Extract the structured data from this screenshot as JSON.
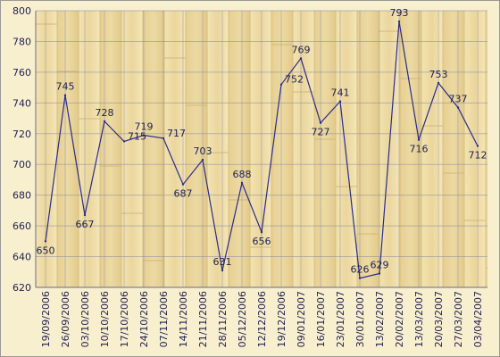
{
  "chart_data": {
    "type": "line",
    "title": "",
    "xlabel": "",
    "ylabel": "",
    "ylim": [
      620,
      800
    ],
    "y_ticks": [
      620,
      640,
      660,
      680,
      700,
      720,
      740,
      760,
      780,
      800
    ],
    "grid": true,
    "x_ticks": [
      "19/09/2006",
      "26/09/2006",
      "03/10/2006",
      "10/10/2006",
      "17/10/2006",
      "24/10/2006",
      "07/11/2006",
      "14/11/2006",
      "21/11/2006",
      "28/11/2006",
      "05/12/2006",
      "12/12/2006",
      "19/12/2006",
      "09/01/2007",
      "16/01/2007",
      "23/01/2007",
      "30/01/2007",
      "13/02/2007",
      "20/02/2007",
      "13/03/2007",
      "20/03/2007",
      "27/03/2007",
      "03/04/2007"
    ],
    "series": [
      {
        "color": "#2b2b8c",
        "values": [
          650,
          745,
          667,
          728,
          715,
          719,
          717,
          687,
          703,
          631,
          688,
          656,
          752,
          769,
          727,
          741,
          626,
          629,
          793,
          716,
          753,
          737,
          712
        ],
        "point_labels": [
          "650",
          "745",
          "667",
          "728",
          "715",
          "719",
          "717",
          "687",
          "703",
          "631",
          "688",
          "656",
          "752",
          "769",
          "727",
          "741",
          "626",
          "629",
          "793",
          "716",
          "753",
          "737",
          "712"
        ],
        "label_positions": [
          "below",
          "above",
          "below",
          "above",
          "right",
          "above",
          "right",
          "below",
          "above",
          "above",
          "above",
          "below",
          "right",
          "above",
          "below",
          "above",
          "above",
          "above",
          "above",
          "below",
          "above",
          "above",
          "below"
        ]
      }
    ]
  }
}
